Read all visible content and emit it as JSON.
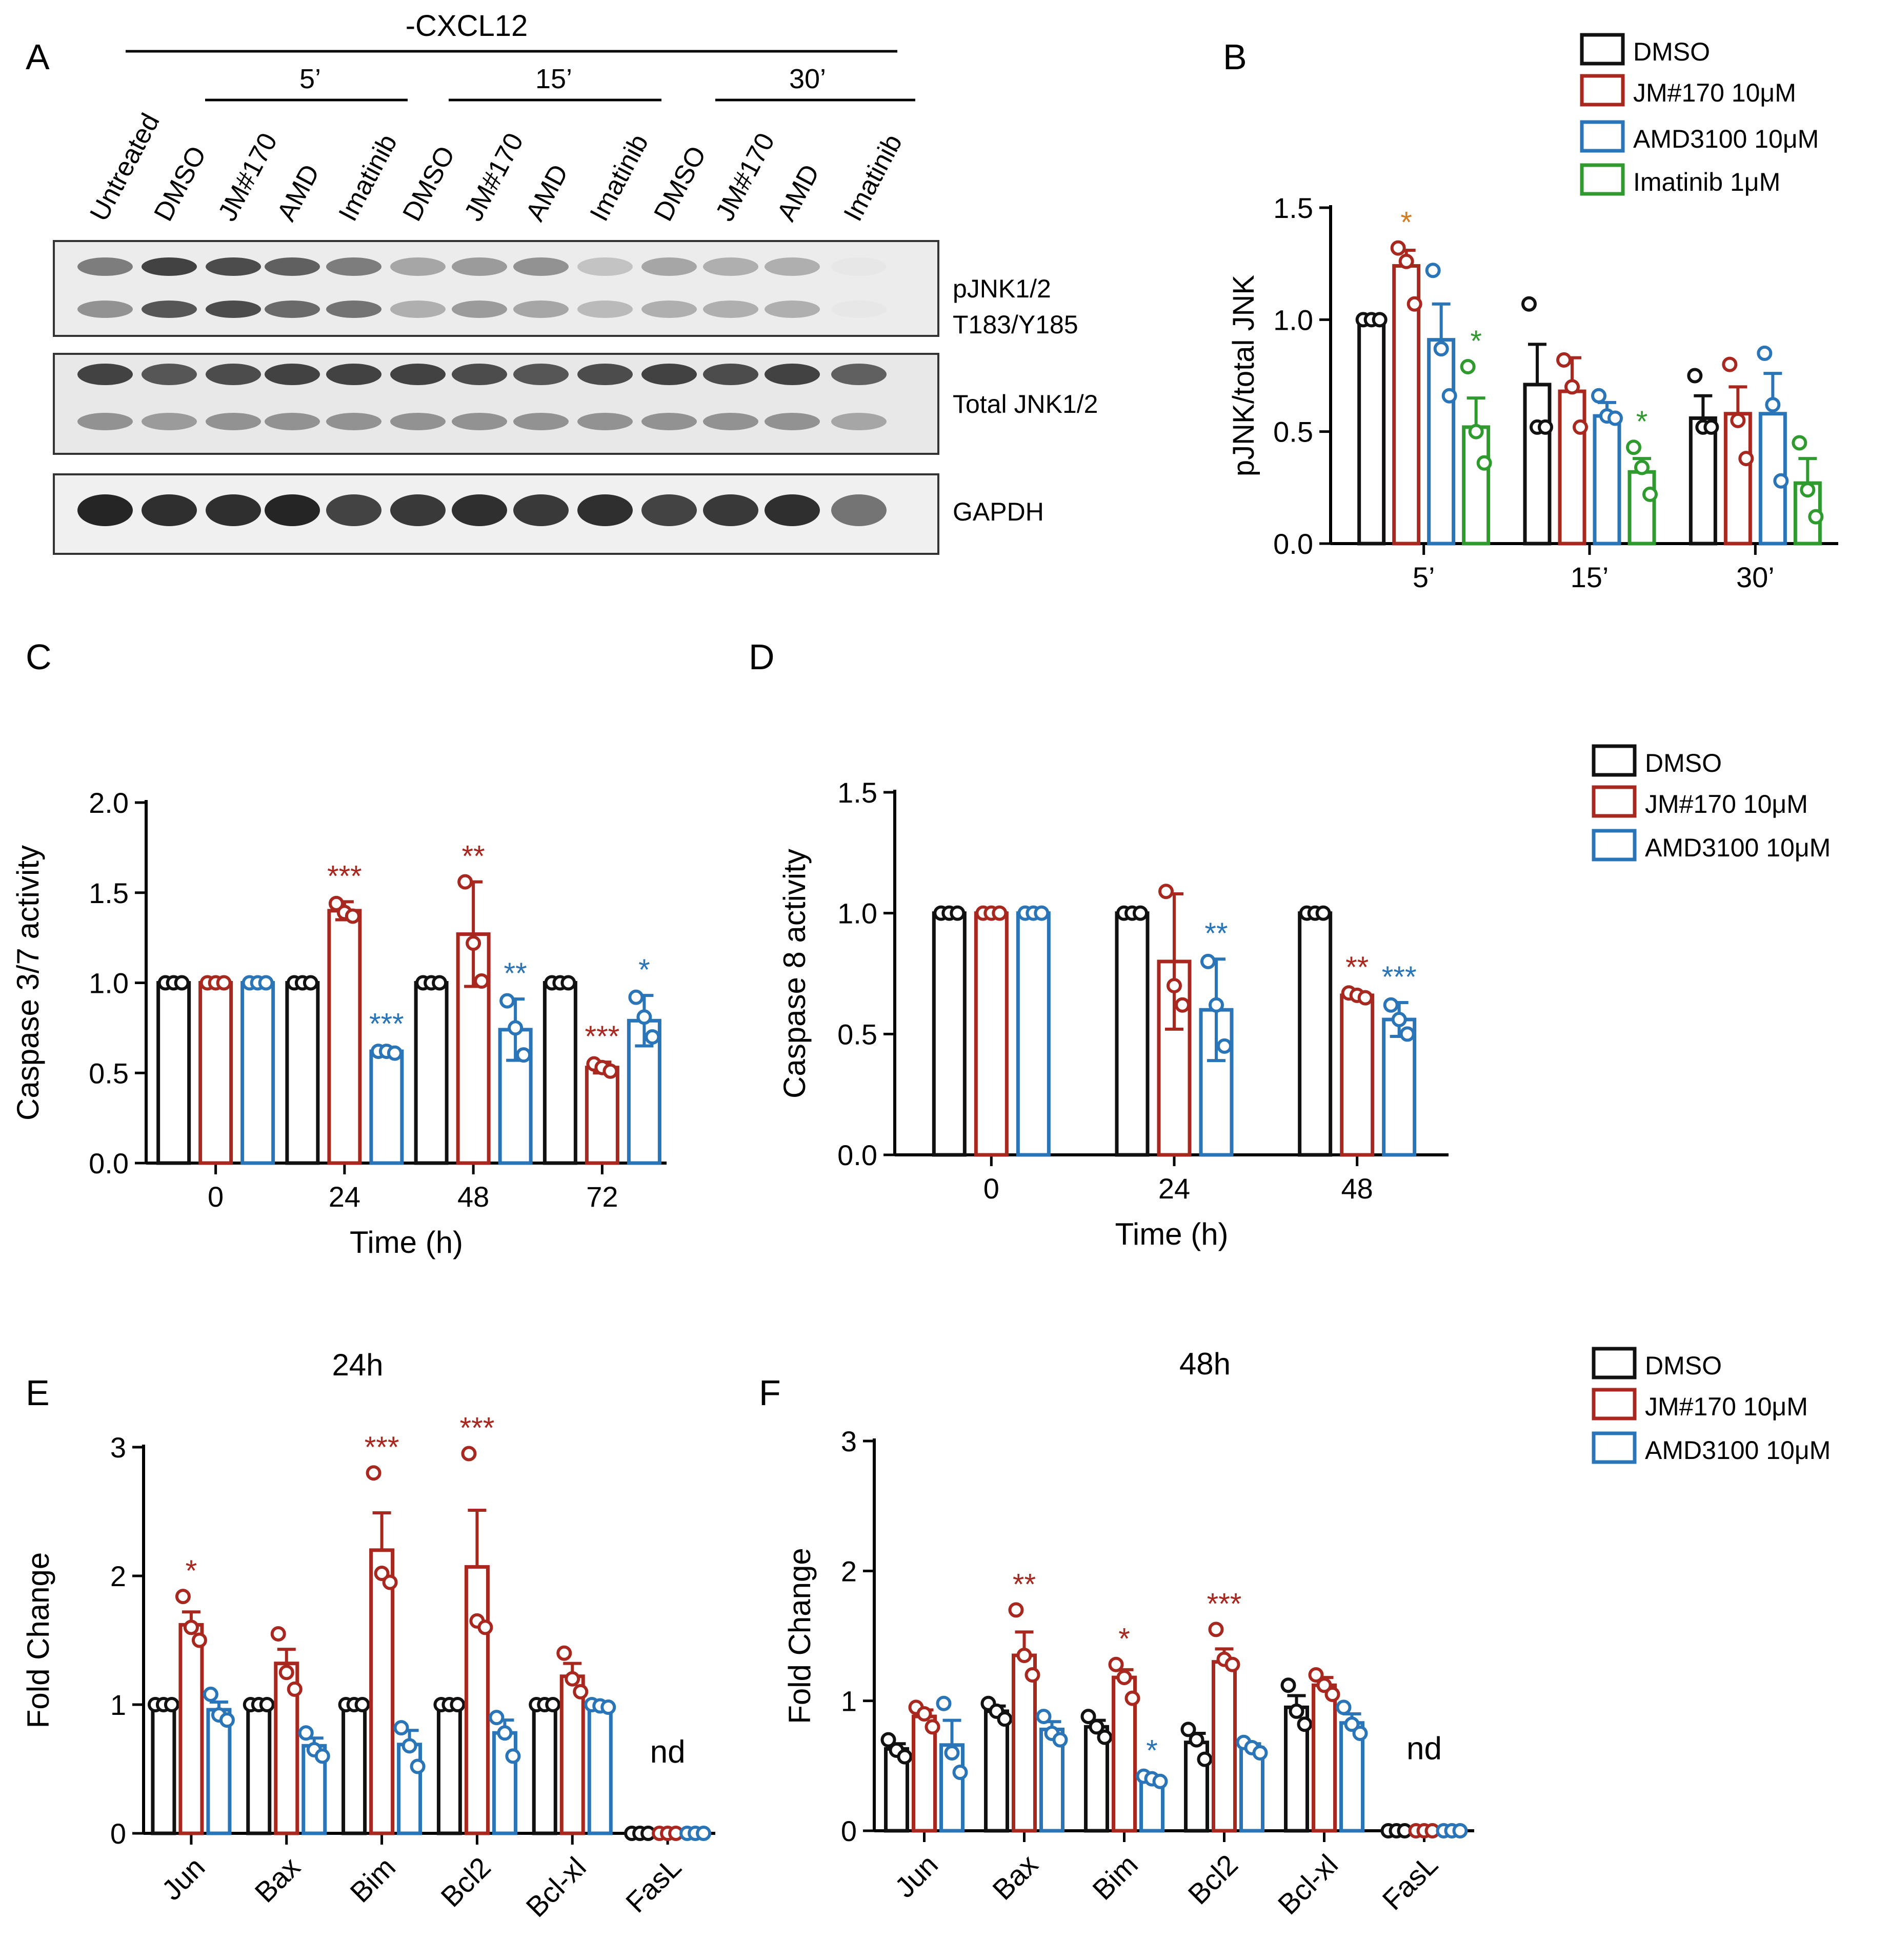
{
  "colors": {
    "dmso": "#111111",
    "jm170": "#a8271e",
    "amd": "#2a74b8",
    "imatinib": "#2f9a2e",
    "star_orange": "#d97a1a"
  },
  "panel_letters": {
    "a": "A",
    "b": "B",
    "c": "C",
    "d": "D",
    "e": "E",
    "f": "F"
  },
  "blot": {
    "top_label": "-CXCL12",
    "time_groups": [
      "5’",
      "15’",
      "30’"
    ],
    "lanes": [
      "Untreated",
      "DMSO",
      "JM#170",
      "AMD",
      "Imatinib",
      "DMSO",
      "JM#170",
      "AMD",
      "Imatinib",
      "DMSO",
      "JM#170",
      "AMD",
      "Imatinib"
    ],
    "band_labels": {
      "pjnk_line1": "pJNK1/2",
      "pjnk_line2": "T183/Y185",
      "total": "Total JNK1/2",
      "gapdh": "GAPDH"
    },
    "intensity": {
      "pjnk_upper": [
        0.55,
        0.85,
        0.8,
        0.7,
        0.55,
        0.35,
        0.4,
        0.45,
        0.2,
        0.35,
        0.3,
        0.3,
        0.02
      ],
      "pjnk_lower": [
        0.45,
        0.75,
        0.8,
        0.65,
        0.6,
        0.3,
        0.4,
        0.35,
        0.25,
        0.3,
        0.3,
        0.3,
        0.02
      ],
      "total_upper": [
        0.85,
        0.75,
        0.8,
        0.85,
        0.85,
        0.85,
        0.8,
        0.75,
        0.8,
        0.85,
        0.8,
        0.85,
        0.7
      ],
      "total_lower": [
        0.45,
        0.4,
        0.45,
        0.45,
        0.45,
        0.45,
        0.45,
        0.45,
        0.45,
        0.45,
        0.45,
        0.45,
        0.35
      ],
      "gapdh": [
        1.0,
        0.95,
        0.95,
        1.0,
        0.85,
        0.9,
        0.95,
        0.9,
        0.95,
        0.85,
        0.9,
        0.95,
        0.6
      ]
    }
  },
  "legends": {
    "b": [
      "DMSO",
      "JM#170 10μM",
      "AMD3100 10μM",
      "Imatinib 1μM"
    ],
    "cd": [
      "DMSO",
      "JM#170 10μM",
      "AMD3100 10μM"
    ],
    "ef": [
      "DMSO",
      "JM#170 10μM",
      "AMD3100 10μM"
    ]
  },
  "chart_data": [
    {
      "panel": "B",
      "type": "bar",
      "title": "",
      "xlabel": "",
      "ylabel": "pJNK/total JNK",
      "ylim": [
        0,
        1.5
      ],
      "yticks": [
        "0.0",
        "0.5",
        "1.0",
        "1.5"
      ],
      "categories": [
        "5’",
        "15’",
        "30’"
      ],
      "series": [
        {
          "name": "DMSO",
          "values": [
            1.0,
            0.71,
            0.56
          ],
          "err": [
            0.01,
            0.18,
            0.1
          ],
          "points": [
            [
              1.0,
              1.0,
              1.0
            ],
            [
              1.07,
              0.52,
              0.52
            ],
            [
              0.75,
              0.52,
              0.52
            ]
          ],
          "stars": [
            "",
            "",
            ""
          ]
        },
        {
          "name": "JM#170 10μM",
          "values": [
            1.24,
            0.68,
            0.58
          ],
          "err": [
            0.07,
            0.15,
            0.12
          ],
          "points": [
            [
              1.32,
              1.26,
              1.07
            ],
            [
              0.82,
              0.7,
              0.52
            ],
            [
              0.8,
              0.55,
              0.38
            ]
          ],
          "stars": [
            "*",
            "",
            ""
          ]
        },
        {
          "name": "AMD3100 10μM",
          "values": [
            0.91,
            0.57,
            0.58
          ],
          "err": [
            0.16,
            0.06,
            0.18
          ],
          "points": [
            [
              1.22,
              0.87,
              0.66
            ],
            [
              0.66,
              0.57,
              0.56
            ],
            [
              0.85,
              0.62,
              0.28
            ]
          ],
          "stars": [
            "",
            "",
            ""
          ]
        },
        {
          "name": "Imatinib 1μM",
          "values": [
            0.52,
            0.32,
            0.27
          ],
          "err": [
            0.13,
            0.06,
            0.11
          ],
          "points": [
            [
              0.79,
              0.5,
              0.36
            ],
            [
              0.43,
              0.34,
              0.22
            ],
            [
              0.45,
              0.24,
              0.12
            ]
          ],
          "stars": [
            "*",
            "*",
            ""
          ]
        }
      ]
    },
    {
      "panel": "C",
      "type": "bar",
      "title": "",
      "xlabel": "Time (h)",
      "ylabel": "Caspase 3/7 activity",
      "ylim": [
        0,
        2.0
      ],
      "yticks": [
        "0.0",
        "0.5",
        "1.0",
        "1.5",
        "2.0"
      ],
      "categories": [
        "0",
        "24",
        "48",
        "72"
      ],
      "series": [
        {
          "name": "DMSO",
          "values": [
            1.0,
            1.0,
            1.0,
            1.0
          ],
          "err": [
            0,
            0,
            0,
            0
          ],
          "points": [
            [
              1.0,
              1.0,
              1.0
            ],
            [
              1.0,
              1.0,
              1.0
            ],
            [
              1.0,
              1.0,
              1.0
            ],
            [
              1.0,
              1.0,
              1.0
            ]
          ],
          "stars": [
            "",
            "",
            "",
            ""
          ]
        },
        {
          "name": "JM#170 10μM",
          "values": [
            1.0,
            1.4,
            1.27,
            0.53
          ],
          "err": [
            0.01,
            0.05,
            0.29,
            0.03
          ],
          "points": [
            [
              1.0,
              1.0,
              1.0
            ],
            [
              1.44,
              1.39,
              1.37
            ],
            [
              1.56,
              1.22,
              1.01
            ],
            [
              0.55,
              0.53,
              0.51
            ]
          ],
          "stars": [
            "",
            "***",
            "**",
            "***"
          ]
        },
        {
          "name": "AMD3100 10μM",
          "values": [
            1.0,
            0.62,
            0.74,
            0.79
          ],
          "err": [
            0.01,
            0.01,
            0.17,
            0.14
          ],
          "points": [
            [
              1.0,
              1.0,
              1.0
            ],
            [
              0.62,
              0.62,
              0.61
            ],
            [
              0.9,
              0.75,
              0.6
            ],
            [
              0.92,
              0.81,
              0.7
            ]
          ],
          "stars": [
            "",
            "***",
            "**",
            "*"
          ]
        }
      ]
    },
    {
      "panel": "D",
      "type": "bar",
      "title": "",
      "xlabel": "Time (h)",
      "ylabel": "Caspase 8 activity",
      "ylim": [
        0,
        1.5
      ],
      "yticks": [
        "0.0",
        "0.5",
        "1.0",
        "1.5"
      ],
      "categories": [
        "0",
        "24",
        "48"
      ],
      "series": [
        {
          "name": "DMSO",
          "values": [
            1.0,
            1.0,
            1.0
          ],
          "err": [
            0,
            0,
            0
          ],
          "points": [
            [
              1.0,
              1.0,
              1.0
            ],
            [
              1.0,
              1.0,
              1.0
            ],
            [
              1.0,
              1.0,
              1.0
            ]
          ],
          "stars": [
            "",
            "",
            ""
          ]
        },
        {
          "name": "JM#170 10μM",
          "values": [
            1.0,
            0.8,
            0.66
          ],
          "err": [
            0.01,
            0.28,
            0.01
          ],
          "points": [
            [
              1.0,
              1.0,
              1.0
            ],
            [
              1.09,
              0.7,
              0.62
            ],
            [
              0.67,
              0.66,
              0.65
            ]
          ],
          "stars": [
            "",
            "",
            "**"
          ]
        },
        {
          "name": "AMD3100 10μM",
          "values": [
            1.0,
            0.6,
            0.56
          ],
          "err": [
            0.01,
            0.21,
            0.07
          ],
          "points": [
            [
              1.0,
              1.0,
              1.0
            ],
            [
              0.8,
              0.62,
              0.45
            ],
            [
              0.62,
              0.56,
              0.5
            ]
          ],
          "stars": [
            "",
            "**",
            "***"
          ]
        }
      ]
    },
    {
      "panel": "E",
      "type": "bar",
      "title": "24h",
      "xlabel": "",
      "ylabel": "Fold Change",
      "ylim": [
        0,
        3
      ],
      "yticks": [
        "0",
        "1",
        "2",
        "3"
      ],
      "categories": [
        "Jun",
        "Bax",
        "Bim",
        "Bcl2",
        "Bcl-xl",
        "FasL"
      ],
      "annotation": "nd",
      "series": [
        {
          "name": "DMSO",
          "values": [
            1.0,
            1.0,
            1.0,
            1.0,
            1.0,
            0.0
          ],
          "err": [
            0,
            0,
            0,
            0,
            0,
            0
          ],
          "points": [
            [
              1.0,
              1.0,
              1.0
            ],
            [
              1.0,
              1.0,
              1.0
            ],
            [
              1.0,
              1.0,
              1.0
            ],
            [
              1.0,
              1.0,
              1.0
            ],
            [
              1.0,
              1.0,
              1.0
            ],
            [
              0,
              0,
              0
            ]
          ],
          "stars": [
            "",
            "",
            "",
            "",
            "",
            ""
          ]
        },
        {
          "name": "JM#170 10μM",
          "values": [
            1.62,
            1.32,
            2.2,
            2.07,
            1.22,
            0.0
          ],
          "err": [
            0.1,
            0.11,
            0.29,
            0.44,
            0.1,
            0
          ],
          "points": [
            [
              1.84,
              1.6,
              1.5
            ],
            [
              1.55,
              1.25,
              1.12
            ],
            [
              2.8,
              2.02,
              1.95
            ],
            [
              2.95,
              1.65,
              1.6
            ],
            [
              1.4,
              1.2,
              1.1
            ],
            [
              0,
              0,
              0
            ]
          ],
          "stars": [
            "*",
            "",
            "***",
            "***",
            "",
            ""
          ]
        },
        {
          "name": "AMD3100 10μM",
          "values": [
            0.96,
            0.68,
            0.69,
            0.78,
            0.99,
            0.0
          ],
          "err": [
            0.06,
            0.06,
            0.11,
            0.1,
            0.01,
            0
          ],
          "points": [
            [
              1.08,
              0.92,
              0.88
            ],
            [
              0.78,
              0.65,
              0.6
            ],
            [
              0.82,
              0.68,
              0.52
            ],
            [
              0.9,
              0.78,
              0.6
            ],
            [
              1.0,
              0.99,
              0.98
            ],
            [
              0,
              0,
              0
            ]
          ],
          "stars": [
            "",
            "",
            "",
            "",
            "",
            ""
          ]
        }
      ]
    },
    {
      "panel": "F",
      "type": "bar",
      "title": "48h",
      "xlabel": "",
      "ylabel": "Fold Change",
      "ylim": [
        0,
        3
      ],
      "yticks": [
        "0",
        "1",
        "2",
        "3"
      ],
      "categories": [
        "Jun",
        "Bax",
        "Bim",
        "Bcl2",
        "Bcl-xl",
        "FasL"
      ],
      "annotation": "nd",
      "series": [
        {
          "name": "DMSO",
          "values": [
            0.63,
            0.92,
            0.8,
            0.68,
            0.95,
            0.0
          ],
          "err": [
            0.04,
            0.04,
            0.05,
            0.07,
            0.09,
            0
          ],
          "points": [
            [
              0.7,
              0.62,
              0.57
            ],
            [
              0.98,
              0.92,
              0.86
            ],
            [
              0.88,
              0.8,
              0.72
            ],
            [
              0.78,
              0.7,
              0.55
            ],
            [
              1.12,
              0.92,
              0.82
            ],
            [
              0,
              0,
              0
            ]
          ],
          "stars": [
            "",
            "",
            "",
            "",
            "",
            ""
          ]
        },
        {
          "name": "JM#170 10μM",
          "values": [
            0.88,
            1.35,
            1.18,
            1.3,
            1.12,
            0.0
          ],
          "err": [
            0.05,
            0.18,
            0.06,
            0.1,
            0.06,
            0
          ],
          "points": [
            [
              0.95,
              0.9,
              0.8
            ],
            [
              1.7,
              1.35,
              1.2
            ],
            [
              1.28,
              1.18,
              1.02
            ],
            [
              1.55,
              1.32,
              1.28
            ],
            [
              1.2,
              1.12,
              1.05
            ],
            [
              0,
              0,
              0
            ]
          ],
          "stars": [
            "",
            "**",
            "*",
            "***",
            "",
            ""
          ]
        },
        {
          "name": "AMD3100 10μM",
          "values": [
            0.66,
            0.78,
            0.4,
            0.64,
            0.83,
            0.0
          ],
          "err": [
            0.19,
            0.06,
            0.02,
            0.03,
            0.07,
            0
          ],
          "points": [
            [
              0.98,
              0.6,
              0.45
            ],
            [
              0.88,
              0.75,
              0.7
            ],
            [
              0.42,
              0.4,
              0.38
            ],
            [
              0.68,
              0.64,
              0.6
            ],
            [
              0.95,
              0.82,
              0.75
            ],
            [
              0,
              0,
              0
            ]
          ],
          "stars": [
            "",
            "",
            "*",
            "",
            "",
            ""
          ]
        }
      ]
    }
  ]
}
